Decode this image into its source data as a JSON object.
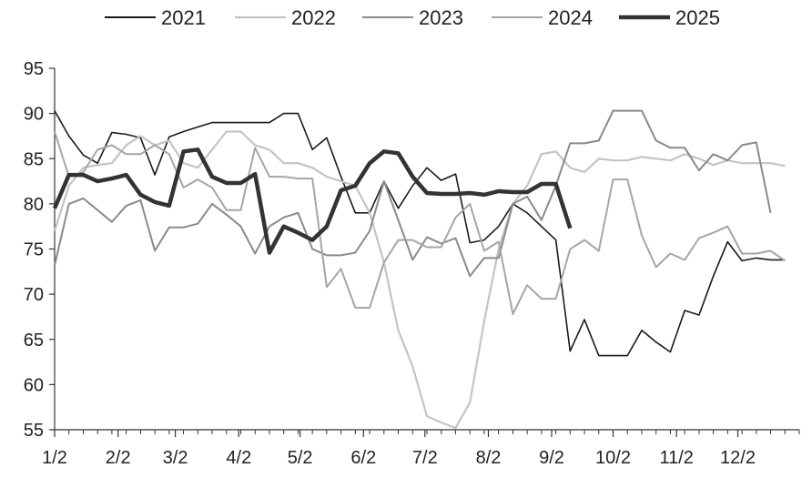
{
  "chart_data": {
    "type": "line",
    "title": "",
    "xlabel": "",
    "ylabel": "",
    "ylim": [
      55,
      95
    ],
    "yticks": [
      55,
      60,
      65,
      70,
      75,
      80,
      85,
      90,
      95
    ],
    "xlim": [
      0,
      52
    ],
    "xticks": [
      {
        "label": "1/2",
        "week": 0
      },
      {
        "label": "2/2",
        "week": 4.43
      },
      {
        "label": "3/2",
        "week": 8.43
      },
      {
        "label": "4/2",
        "week": 12.86
      },
      {
        "label": "5/2",
        "week": 17.14
      },
      {
        "label": "6/2",
        "week": 21.57
      },
      {
        "label": "7/2",
        "week": 25.86
      },
      {
        "label": "8/2",
        "week": 30.29
      },
      {
        "label": "9/2",
        "week": 34.71
      },
      {
        "label": "10/2",
        "week": 39.0
      },
      {
        "label": "11/2",
        "week": 43.43
      },
      {
        "label": "12/2",
        "week": 47.71
      }
    ],
    "grid": false,
    "legend_position": "top",
    "series": [
      {
        "name": "2021",
        "color": "#1a1a1a",
        "width": 1.6,
        "values": [
          90.3,
          87.5,
          85.4,
          84.5,
          87.9,
          87.7,
          87.3,
          83.2,
          87.4,
          88.0,
          88.5,
          89.0,
          89.0,
          89.0,
          89.0,
          89.0,
          90.0,
          90.0,
          86.0,
          87.3,
          83.0,
          79.0,
          79.0,
          82.5,
          79.5,
          82.0,
          84.0,
          82.6,
          83.3,
          75.7,
          76.0,
          77.5,
          80.0,
          79.0,
          77.5,
          76.0,
          63.7,
          67.2,
          63.2,
          63.2,
          63.2,
          66.0,
          64.7,
          63.6,
          68.2,
          67.7,
          72.0,
          75.8,
          73.7,
          74.0,
          73.8,
          73.8
        ]
      },
      {
        "name": "2022",
        "color": "#c4c4c4",
        "width": 2.2,
        "values": [
          77.0,
          82.0,
          84.0,
          84.3,
          84.5,
          86.5,
          87.5,
          86.5,
          87.0,
          84.5,
          84.0,
          86.0,
          88.0,
          88.0,
          86.5,
          86.0,
          84.5,
          84.5,
          84.0,
          83.0,
          82.5,
          82.0,
          79.0,
          73.5,
          66.0,
          62.0,
          56.5,
          55.8,
          55.2,
          58.0,
          67.0,
          75.0,
          80.0,
          82.0,
          85.5,
          85.8,
          84.0,
          83.5,
          85.0,
          84.8,
          84.8,
          85.2,
          85.0,
          84.8,
          85.5,
          85.0,
          84.3,
          84.8,
          84.5,
          84.5,
          84.5,
          84.2
        ]
      },
      {
        "name": "2023",
        "color": "#8a8a8a",
        "width": 2.0,
        "values": [
          73.2,
          80.0,
          80.6,
          79.3,
          78.0,
          79.8,
          80.4,
          74.8,
          77.4,
          77.4,
          77.8,
          80.0,
          78.8,
          77.5,
          74.5,
          77.5,
          78.5,
          79.0,
          75.0,
          74.3,
          74.3,
          74.6,
          77.0,
          82.5,
          78.2,
          73.8,
          76.3,
          75.6,
          76.2,
          72.0,
          74.0,
          74.0,
          80.0,
          80.8,
          78.2,
          82.0,
          86.7,
          86.7,
          87.0,
          90.3,
          90.3,
          90.3,
          87.0,
          86.2,
          86.2,
          83.7,
          85.5,
          84.8,
          86.5,
          86.8,
          79.0
        ]
      },
      {
        "name": "2024",
        "color": "#a5a5a5",
        "width": 2.0,
        "values": [
          88.0,
          83.0,
          83.5,
          86.0,
          86.5,
          85.5,
          85.5,
          86.5,
          85.5,
          81.8,
          82.7,
          81.8,
          79.3,
          79.3,
          86.2,
          83.0,
          83.0,
          82.8,
          82.8,
          70.8,
          72.8,
          68.5,
          68.5,
          73.5,
          76.0,
          76.0,
          75.2,
          75.2,
          78.5,
          80.0,
          74.8,
          75.8,
          67.8,
          71.0,
          69.5,
          69.5,
          75.0,
          76.0,
          74.8,
          82.7,
          82.7,
          76.5,
          73.0,
          74.5,
          73.8,
          76.2,
          76.8,
          77.5,
          74.5,
          74.5,
          74.8,
          73.7
        ]
      },
      {
        "name": "2025",
        "color": "#333333",
        "width": 4.5,
        "values": [
          79.5,
          83.2,
          83.2,
          82.5,
          82.8,
          83.2,
          81.0,
          80.2,
          79.8,
          85.8,
          86.0,
          83.0,
          82.3,
          82.3,
          83.3,
          74.6,
          77.5,
          76.8,
          76.0,
          77.5,
          81.5,
          82.0,
          84.5,
          85.8,
          85.6,
          83.0,
          81.2,
          81.1,
          81.1,
          81.2,
          81.0,
          81.4,
          81.3,
          81.3,
          82.2,
          82.2,
          77.3
        ]
      }
    ]
  }
}
